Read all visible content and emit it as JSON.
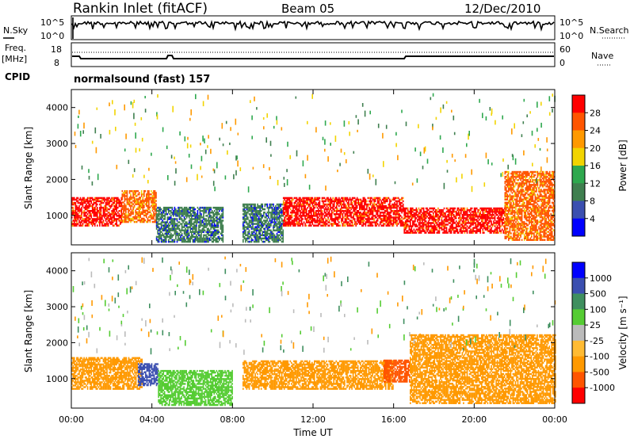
{
  "header": {
    "station": "Rankin Inlet (fitACF)",
    "beam": "Beam 05",
    "date": "12/Dec/2010",
    "cpid_label": "CPID",
    "cpid_value": "normalsound (fast) 157"
  },
  "status_panels": {
    "nsky": {
      "left_label": "N.Sky",
      "right_label": "N.Search",
      "left_ticks": [
        "10^5",
        "10^0"
      ],
      "right_ticks": [
        "10^5",
        "10^0"
      ]
    },
    "freq": {
      "left_label": "Freq.",
      "left_unit": "[MHz]",
      "right_label": "Nave",
      "left_ticks": [
        "18",
        "8"
      ],
      "right_ticks": [
        "60",
        "0"
      ]
    }
  },
  "colors": {
    "power_scale": [
      "#0000ff",
      "#3b4fb0",
      "#3f7f4f",
      "#2ea84e",
      "#f2d400",
      "#ff9900",
      "#ff5500",
      "#ff0000"
    ],
    "velocity_scale": [
      "#ff0000",
      "#ff5500",
      "#ff9900",
      "#ffbb33",
      "#bbbbbb",
      "#55cc33",
      "#3f8f5f",
      "#3b4fb0",
      "#0000ff"
    ]
  },
  "chart_data": [
    {
      "type": "heatmap",
      "name": "power",
      "xlabel": "",
      "ylabel": "Slant Range [km]",
      "x_ticks": [
        "00:00",
        "04:00",
        "08:00",
        "12:00",
        "16:00",
        "20:00",
        "00:00"
      ],
      "y_ticks": [
        "1000",
        "2000",
        "3000",
        "4000"
      ],
      "ylim": [
        180,
        4500
      ],
      "xlim_hours": [
        0,
        24
      ],
      "colorbar_label": "Power [dB]",
      "colorbar_ticks": [
        "4",
        "8",
        "12",
        "16",
        "20",
        "24",
        "28"
      ],
      "scatter_bands": [
        {
          "t0": 0.0,
          "t1": 2.5,
          "r0": 700,
          "r1": 1500,
          "level": 28
        },
        {
          "t0": 2.5,
          "t1": 4.2,
          "r0": 800,
          "r1": 1700,
          "level": 24
        },
        {
          "t0": 4.2,
          "t1": 7.5,
          "r0": 250,
          "r1": 1200,
          "level": 8
        },
        {
          "t0": 8.5,
          "t1": 10.5,
          "r0": 250,
          "r1": 1300,
          "level": 8
        },
        {
          "t0": 10.5,
          "t1": 16.5,
          "r0": 700,
          "r1": 1500,
          "level": 28
        },
        {
          "t0": 16.5,
          "t1": 21.5,
          "r0": 500,
          "r1": 1200,
          "level": 28
        },
        {
          "t0": 21.5,
          "t1": 24.0,
          "r0": 300,
          "r1": 2200,
          "level": 24
        }
      ]
    },
    {
      "type": "heatmap",
      "name": "velocity",
      "xlabel": "Time UT",
      "ylabel": "Slant Range [km]",
      "x_ticks": [
        "00:00",
        "04:00",
        "08:00",
        "12:00",
        "16:00",
        "20:00",
        "00:00"
      ],
      "y_ticks": [
        "1000",
        "2000",
        "3000",
        "4000"
      ],
      "ylim": [
        180,
        4500
      ],
      "xlim_hours": [
        0,
        24
      ],
      "colorbar_label": "Velocity [m s⁻¹]",
      "colorbar_ticks": [
        "1000",
        "500",
        "100",
        "25",
        "-25",
        "-100",
        "-500",
        "-1000"
      ],
      "scatter_bands": [
        {
          "t0": 0.0,
          "t1": 3.5,
          "r0": 700,
          "r1": 1600,
          "level": -100
        },
        {
          "t0": 3.3,
          "t1": 4.3,
          "r0": 800,
          "r1": 1400,
          "level": 1000
        },
        {
          "t0": 4.3,
          "t1": 8.0,
          "r0": 250,
          "r1": 1200,
          "level": 100
        },
        {
          "t0": 8.5,
          "t1": 16.0,
          "r0": 700,
          "r1": 1500,
          "level": -100
        },
        {
          "t0": 15.5,
          "t1": 16.8,
          "r0": 900,
          "r1": 1500,
          "level": -500
        },
        {
          "t0": 16.8,
          "t1": 24.0,
          "r0": 300,
          "r1": 2200,
          "level": -100
        }
      ]
    }
  ]
}
